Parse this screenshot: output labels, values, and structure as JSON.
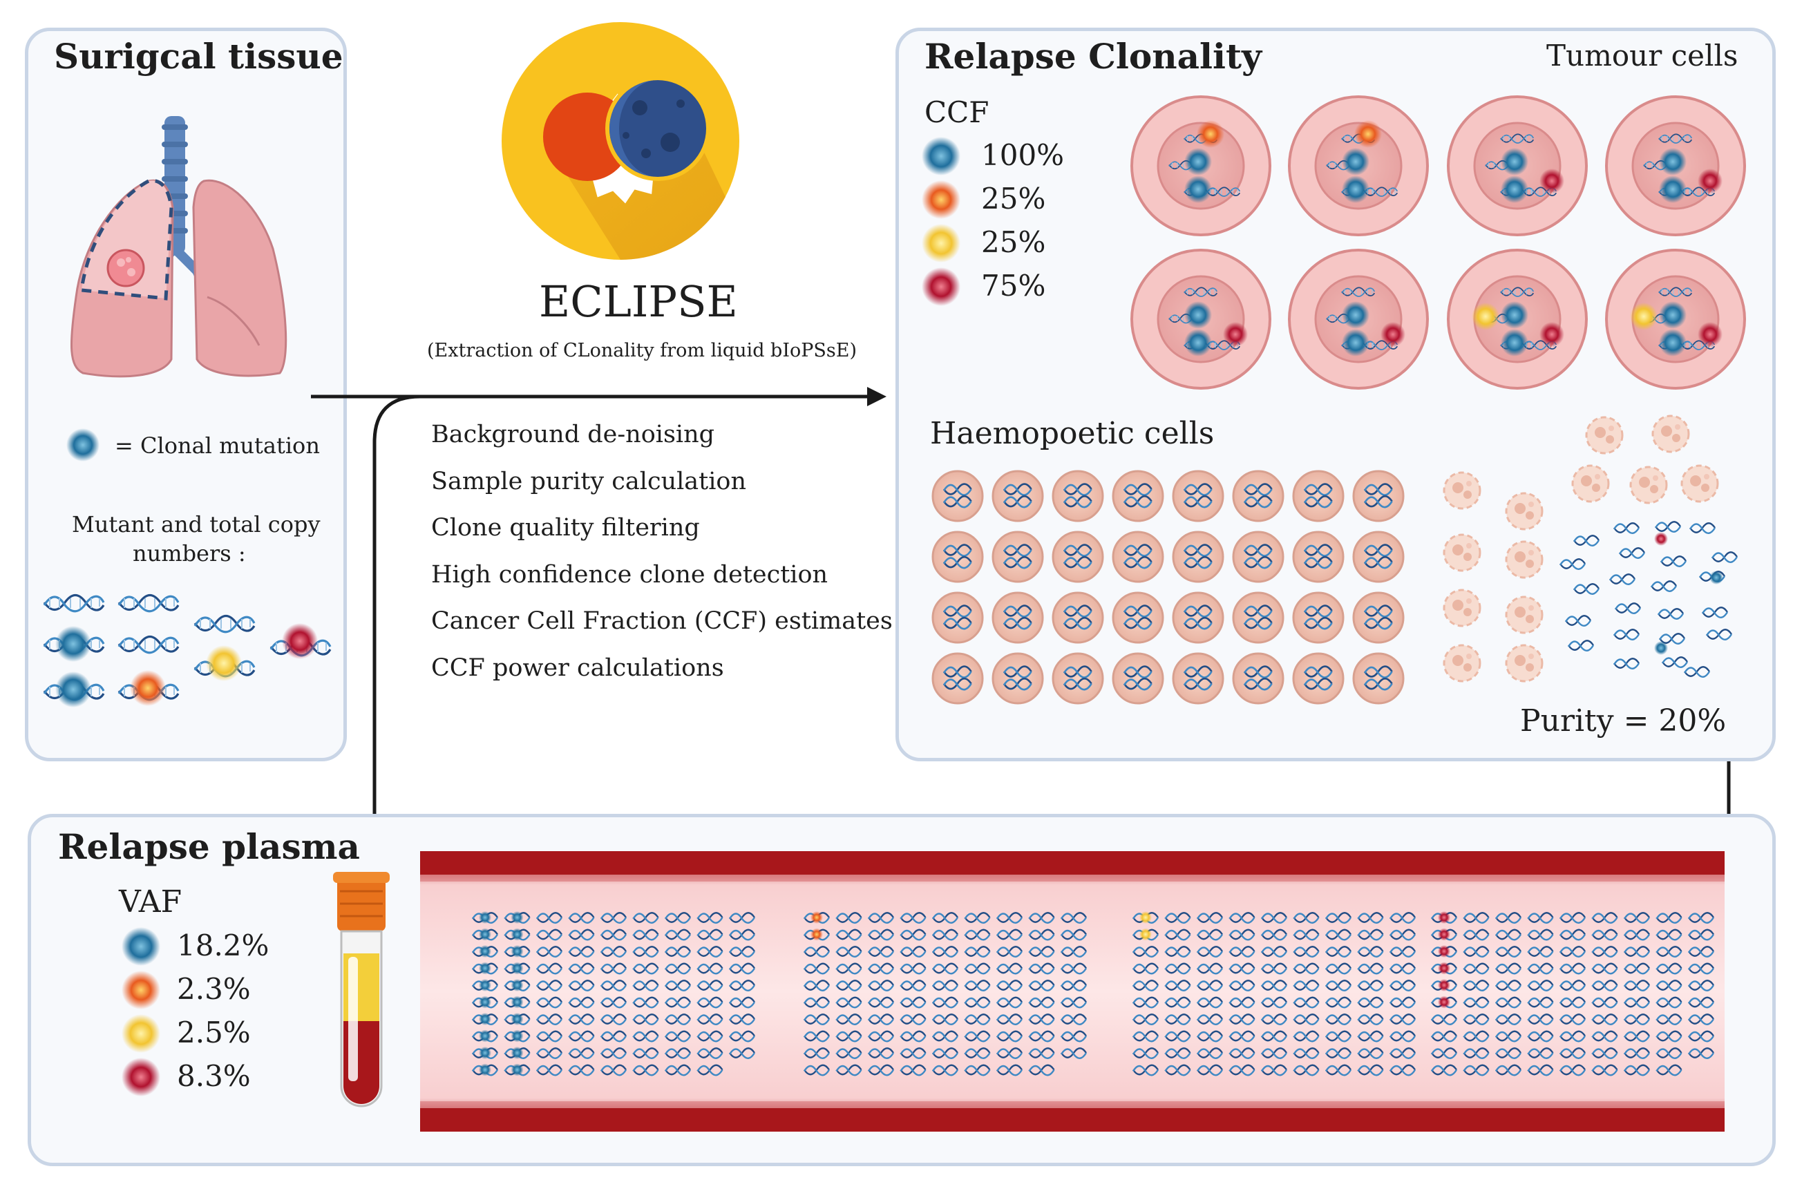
{
  "surgical": {
    "title": "Surigcal tissue",
    "clonal_legend_label": "= Clonal mutation",
    "copy_number_label_1": "Mutant and total copy",
    "copy_number_label_2": "numbers :"
  },
  "eclipse": {
    "name": "ECLIPSE",
    "subtitle": "(Extraction of CLonality from liquid bIoPSsE)",
    "steps": [
      "Background de-noising",
      "Sample purity calculation",
      "Clone quality filtering",
      "High confidence clone detection",
      "Cancer Cell Fraction (CCF) estimates",
      "CCF power calculations"
    ]
  },
  "relapse_clonality": {
    "title": "Relapse Clonality",
    "tumour_label": "Tumour cells",
    "ccf_title": "CCF",
    "ccf_entries": [
      {
        "value": "100%",
        "color": "#1f6e9c"
      },
      {
        "value": "25%",
        "color": "#e85a1f"
      },
      {
        "value": "25%",
        "color": "#f2c431"
      },
      {
        "value": "75%",
        "color": "#b0122f"
      }
    ],
    "haem_title": "Haemopoetic cells",
    "purity": "Purity = 20%"
  },
  "relapse_plasma": {
    "title": "Relapse plasma",
    "vaf_title": "VAF",
    "vaf_entries": [
      {
        "value": "18.2%",
        "color": "#1f6e9c"
      },
      {
        "value": "2.3%",
        "color": "#e85a1f"
      },
      {
        "value": "2.5%",
        "color": "#f2c431"
      },
      {
        "value": "8.3%",
        "color": "#b0122f"
      }
    ]
  },
  "colors": {
    "clonal_blue": "#1f6e9c",
    "subclone_orange": "#e85a1f",
    "subclone_yellow": "#f2c431",
    "subclone_red": "#b0122f",
    "panel_border": "#c9d5e6",
    "vessel_red": "#a8171b",
    "logo_yellow": "#f9c21f"
  }
}
